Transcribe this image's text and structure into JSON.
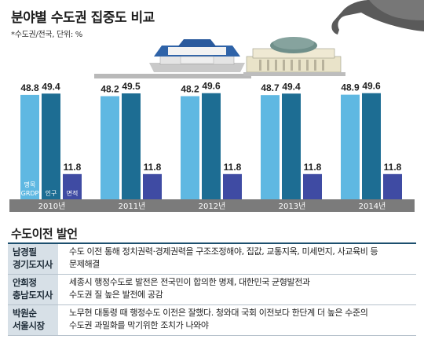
{
  "title": "분야별 수도권 집중도 비교",
  "subtitle": "*수도권/전국, 단위: %",
  "chart_data": {
    "type": "bar",
    "categories": [
      "2010년",
      "2011년",
      "2012년",
      "2013년",
      "2014년"
    ],
    "series": [
      {
        "name": "명목 GRDP",
        "values": [
          48.8,
          48.2,
          48.2,
          48.7,
          48.9
        ],
        "color": "#5fb8e2"
      },
      {
        "name": "인구",
        "values": [
          49.4,
          49.5,
          49.6,
          49.4,
          49.6
        ],
        "color": "#1d6d93"
      },
      {
        "name": "면적",
        "values": [
          11.8,
          11.8,
          11.8,
          11.8,
          11.8
        ],
        "color": "#3f4ba3"
      }
    ],
    "first_group_labels": [
      "명목",
      "GRDP",
      "인구",
      "면적"
    ],
    "ylim": [
      0,
      55
    ]
  },
  "quotes": {
    "title": "수도이전 발언",
    "rows": [
      {
        "name_line1": "남경필",
        "name_line2": "경기도지사",
        "line1": "수도 이전 통해 정치권력·경제권력을 구조조정해야, 집값, 교통지옥, 미세먼지, 사교육비 등",
        "line2": "문제해결"
      },
      {
        "name_line1": "안희정",
        "name_line2": "충남도지사",
        "line1": "세종시 행정수도로 발전은 전국민이 합의한 명제, 대한민국 균형발전과",
        "line2": "수도권 질 높은 발전에 공감"
      },
      {
        "name_line1": "박원순",
        "name_line2": "서울시장",
        "line1": "노무현 대통령 때 행정수도 이전은 잘했다. 청와대 국회 이전보다 한단계 더 높은 수준의",
        "line2": "수도권 과밀화를 막기위한 조치가 나와야"
      }
    ]
  }
}
